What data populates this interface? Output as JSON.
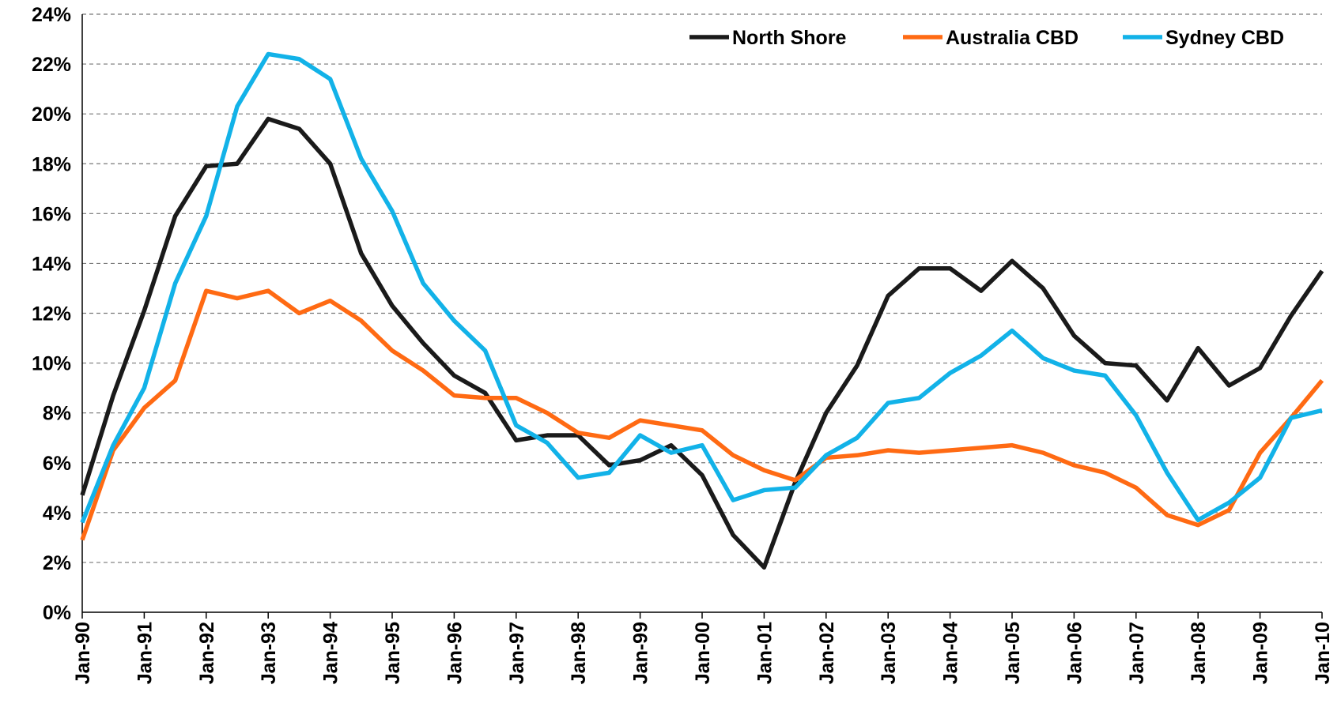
{
  "chart_data": {
    "type": "line",
    "categories": [
      "Jan-90",
      null,
      "Jan-91",
      null,
      "Jan-92",
      null,
      "Jan-93",
      null,
      "Jan-94",
      null,
      "Jan-95",
      null,
      "Jan-96",
      null,
      "Jan-97",
      null,
      "Jan-98",
      null,
      "Jan-99",
      null,
      "Jan-00",
      null,
      "Jan-01",
      null,
      "Jan-02",
      null,
      "Jan-03",
      null,
      "Jan-04",
      null,
      "Jan-05",
      null,
      "Jan-06",
      null,
      "Jan-07",
      null,
      "Jan-08",
      null,
      "Jan-09",
      null,
      "Jan-10"
    ],
    "series": [
      {
        "name": "North Shore",
        "color": "#1a1a1a",
        "values": [
          4.7,
          8.7,
          12.1,
          15.9,
          17.9,
          18.0,
          19.8,
          19.4,
          18.0,
          14.4,
          12.3,
          10.8,
          9.5,
          8.8,
          6.9,
          7.1,
          7.1,
          5.9,
          6.1,
          6.7,
          5.5,
          3.1,
          1.8,
          5.2,
          8.0,
          9.9,
          12.7,
          13.8,
          13.8,
          12.9,
          14.1,
          13.0,
          11.1,
          10.0,
          9.9,
          8.5,
          10.6,
          9.1,
          9.8,
          11.9,
          13.7
        ]
      },
      {
        "name": "Australia CBD",
        "color": "#ff6a13",
        "values": [
          2.9,
          6.5,
          8.2,
          9.3,
          12.9,
          12.6,
          12.9,
          12.0,
          12.5,
          11.7,
          10.5,
          9.7,
          8.7,
          8.6,
          8.6,
          8.0,
          7.2,
          7.0,
          7.7,
          7.5,
          7.3,
          6.3,
          5.7,
          5.3,
          6.2,
          6.3,
          6.5,
          6.4,
          6.5,
          6.6,
          6.7,
          6.4,
          5.9,
          5.6,
          5.0,
          3.9,
          3.5,
          4.1,
          6.4,
          7.8,
          9.3
        ]
      },
      {
        "name": "Sydney CBD",
        "color": "#12b2e8",
        "values": [
          3.6,
          6.7,
          9.0,
          13.2,
          15.9,
          20.3,
          22.4,
          22.2,
          21.4,
          18.2,
          16.1,
          13.2,
          11.7,
          10.5,
          7.5,
          6.8,
          5.4,
          5.6,
          7.1,
          6.4,
          6.7,
          4.5,
          4.9,
          5.0,
          6.3,
          7.0,
          8.4,
          8.6,
          9.6,
          10.3,
          11.3,
          10.2,
          9.7,
          9.5,
          7.9,
          5.6,
          3.7,
          4.4,
          5.4,
          7.8,
          8.1
        ]
      }
    ],
    "ylim": [
      0,
      24
    ],
    "yticks": [
      {
        "value": 0,
        "label": "0%"
      },
      {
        "value": 2,
        "label": "2%"
      },
      {
        "value": 4,
        "label": "4%"
      },
      {
        "value": 6,
        "label": "6%"
      },
      {
        "value": 8,
        "label": "8%"
      },
      {
        "value": 10,
        "label": "10%"
      },
      {
        "value": 12,
        "label": "12%"
      },
      {
        "value": 14,
        "label": "14%"
      },
      {
        "value": 16,
        "label": "16%"
      },
      {
        "value": 18,
        "label": "18%"
      },
      {
        "value": 20,
        "label": "20%"
      },
      {
        "value": 22,
        "label": "22%"
      },
      {
        "value": 24,
        "label": "24%"
      }
    ],
    "grid": true,
    "legend": "top-right"
  }
}
